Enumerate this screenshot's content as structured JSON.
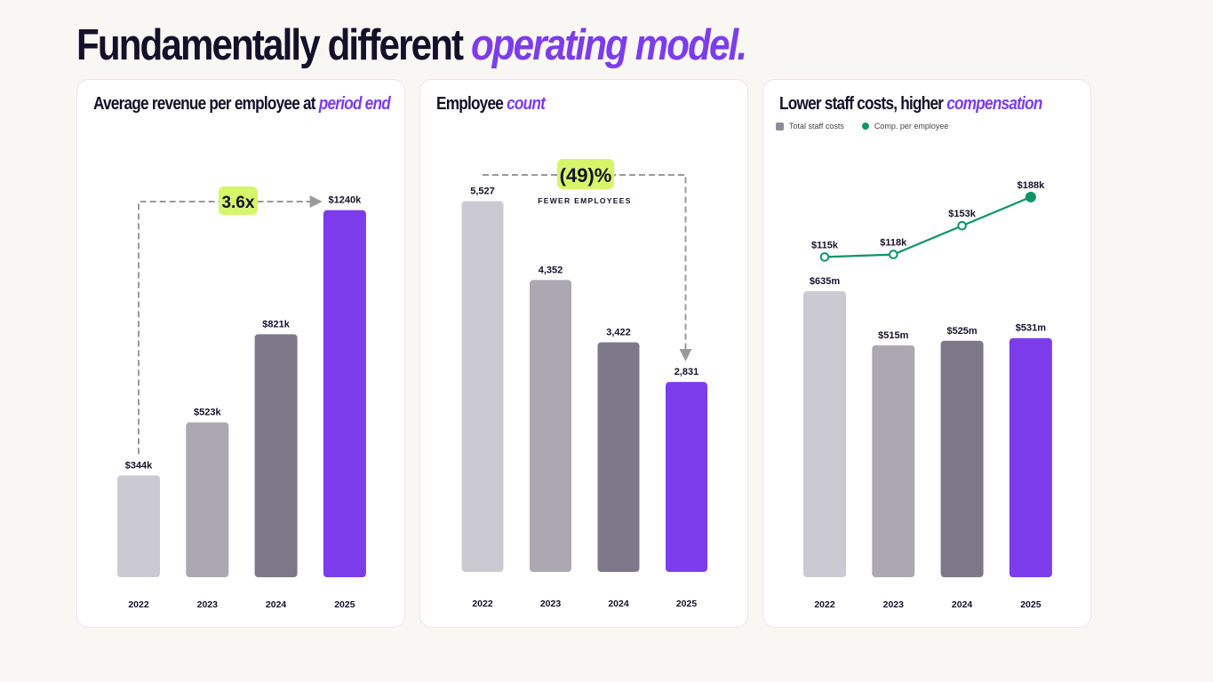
{
  "headline": {
    "main": "Fundamentally different",
    "accent": "operating model."
  },
  "colors": {
    "bars": [
      "#cbc9d2",
      "#aba8b1",
      "#7c7889",
      "#7d3cec"
    ],
    "accent": "#7d3cec",
    "highlight": "#d6f56b",
    "line": "#0e9468",
    "arrow": "#9a9a9a"
  },
  "chart_data": [
    {
      "type": "bar",
      "title": "Average revenue per employee at",
      "title_accent": "period end",
      "categories": [
        "2022",
        "2023",
        "2024",
        "2025"
      ],
      "values": [
        344,
        523,
        821,
        1240
      ],
      "value_labels": [
        "$344k",
        "$523k",
        "$821k",
        "$1240k"
      ],
      "unit": "$k",
      "ylim": [
        0,
        1260
      ],
      "callout": {
        "text": "3.6x",
        "from": "2022",
        "to": "2025"
      }
    },
    {
      "type": "bar",
      "title": "Employee",
      "title_accent": "count",
      "categories": [
        "2022",
        "2023",
        "2024",
        "2025"
      ],
      "values": [
        5527,
        4352,
        3422,
        2831
      ],
      "value_labels": [
        "5,527",
        "4,352",
        "3,422",
        "2,831"
      ],
      "ylim": [
        0,
        5560
      ],
      "callout": {
        "text": "(49)%",
        "subtext": "FEWER EMPLOYEES",
        "from": "2022",
        "to": "2025"
      }
    },
    {
      "type": "bar",
      "title": "Lower staff costs, higher",
      "title_accent": "compensation",
      "legend": [
        "Total staff costs",
        "Comp. per employee"
      ],
      "categories": [
        "2022",
        "2023",
        "2024",
        "2025"
      ],
      "series": [
        {
          "name": "Total staff costs",
          "type": "bar",
          "values": [
            635,
            515,
            525,
            531
          ],
          "value_labels": [
            "$635m",
            "$515m",
            "$525m",
            "$531m"
          ],
          "unit": "$m"
        },
        {
          "name": "Comp. per employee",
          "type": "line",
          "values": [
            115,
            118,
            153,
            188
          ],
          "value_labels": [
            "$115k",
            "$118k",
            "$153k",
            "$188k"
          ],
          "unit": "$k"
        }
      ],
      "ylim": [
        0,
        635
      ]
    }
  ]
}
